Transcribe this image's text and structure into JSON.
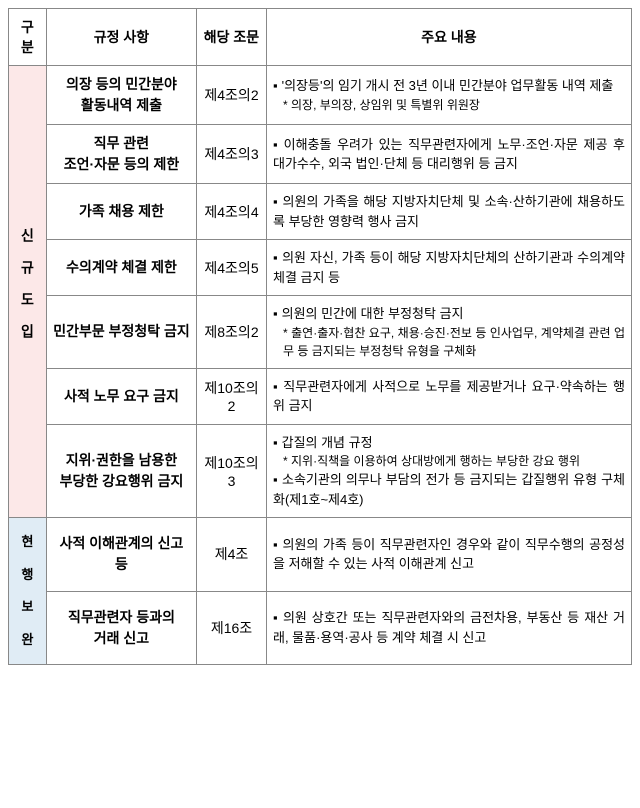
{
  "headers": {
    "category": "구분",
    "regulation": "규정 사항",
    "article": "해당 조문",
    "content": "주요 내용"
  },
  "categories": {
    "new": "신규도입",
    "existing_chars": [
      "현",
      "행",
      "보",
      "완"
    ]
  },
  "rows": [
    {
      "regulation_line1": "의장 등의 민간분야",
      "regulation_line2": "활동내역 제출",
      "article": "제4조의2",
      "content_main": [
        "'의장등'의 임기 개시 전 3년 이내 민간분야 업무활동 내역 제출"
      ],
      "content_sub": [
        "의장, 부의장, 상임위 및 특별위 위원장"
      ]
    },
    {
      "regulation_line1": "직무 관련",
      "regulation_line2": "조언·자문 등의 제한",
      "article": "제4조의3",
      "content_main": [
        "이해충돌 우려가 있는 직무관련자에게 노무·조언·자문 제공 후 대가수수, 외국 법인·단체 등 대리행위 등 금지"
      ],
      "content_sub": []
    },
    {
      "regulation_line1": "가족 채용 제한",
      "regulation_line2": "",
      "article": "제4조의4",
      "content_main": [
        "의원의 가족을 해당 지방자치단체 및 소속·산하기관에 채용하도록 부당한 영향력 행사 금지"
      ],
      "content_sub": []
    },
    {
      "regulation_line1": "수의계약 체결 제한",
      "regulation_line2": "",
      "article": "제4조의5",
      "content_main": [
        "의원 자신, 가족 등이 해당 지방자치단체의 산하기관과 수의계약 체결 금지 등"
      ],
      "content_sub": []
    },
    {
      "regulation_line1": "민간부문 부정청탁 금지",
      "regulation_line2": "",
      "article": "제8조의2",
      "content_main": [
        "의원의 민간에 대한 부정청탁 금지"
      ],
      "content_sub": [
        "출연·출자·협찬 요구, 채용·승진·전보 등 인사업무, 계약체결 관련 업무 등 금지되는 부정청탁 유형을 구체화"
      ]
    },
    {
      "regulation_line1": "사적 노무 요구 금지",
      "regulation_line2": "",
      "article": "제10조의2",
      "content_main": [
        "직무관련자에게 사적으로 노무를 제공받거나 요구·약속하는 행위 금지"
      ],
      "content_sub": []
    },
    {
      "regulation_line1": "지위·권한을 남용한",
      "regulation_line2": "부당한 강요행위 금지",
      "article": "제10조의3",
      "content_main": [
        "갑질의 개념 규정"
      ],
      "content_sub": [
        "지위·직책을 이용하여 상대방에게 행하는 부당한 강요 행위"
      ],
      "content_main2": [
        "소속기관의 의무나 부담의 전가 등 금지되는 갑질행위 유형 구체화(제1호~제4호)"
      ]
    },
    {
      "regulation_line1": "사적 이해관계의 신고 등",
      "regulation_line2": "",
      "article": "제4조",
      "content_main": [
        "의원의 가족 등이 직무관련자인 경우와 같이 직무수행의 공정성을 저해할 수 있는 사적 이해관계 신고"
      ],
      "content_sub": []
    },
    {
      "regulation_line1": "직무관련자 등과의",
      "regulation_line2": "거래 신고",
      "article": "제16조",
      "content_main": [
        "의원 상호간 또는 직무관련자와의 금전차용, 부동산 등 재산 거래, 물품·용역·공사 등 계약 체결 시 신고"
      ],
      "content_sub": []
    }
  ]
}
